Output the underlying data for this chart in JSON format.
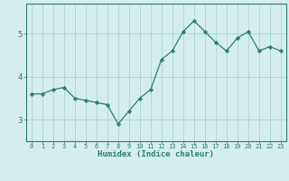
{
  "xlabel": "Humidex (Indice chaleur)",
  "ylabel": "",
  "x": [
    0,
    1,
    2,
    3,
    4,
    5,
    6,
    7,
    8,
    9,
    10,
    11,
    12,
    13,
    14,
    15,
    16,
    17,
    18,
    19,
    20,
    21,
    22,
    23
  ],
  "y": [
    3.6,
    3.6,
    3.7,
    3.75,
    3.5,
    3.45,
    3.4,
    3.35,
    2.9,
    3.2,
    3.5,
    3.7,
    4.4,
    4.6,
    5.05,
    5.3,
    5.05,
    4.8,
    4.6,
    4.9,
    5.05,
    4.6,
    4.7,
    4.6
  ],
  "line_color": "#2e7d72",
  "marker": "D",
  "marker_size": 2.2,
  "bg_color": "#d4eeee",
  "grid_color": "#aad4d4",
  "axis_color": "#2e7d72",
  "ylim": [
    2.5,
    5.7
  ],
  "yticks": [
    3,
    4,
    5
  ],
  "xlim": [
    -0.5,
    23.5
  ]
}
